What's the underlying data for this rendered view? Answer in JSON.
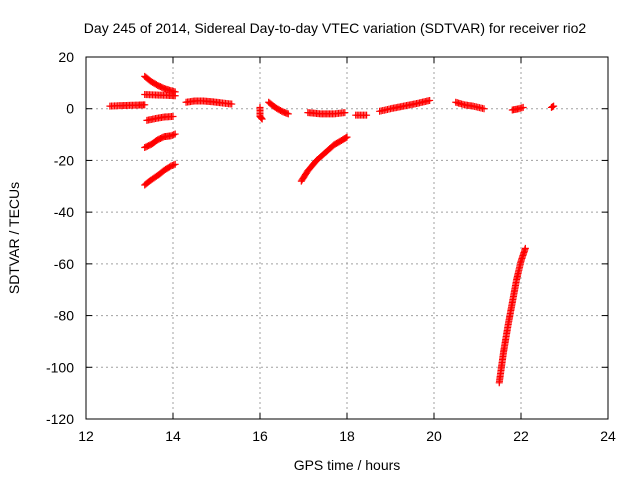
{
  "chart_data": {
    "type": "scatter",
    "title": "Day 245 of 2014, Sidereal Day-to-day VTEC variation (SDTVAR) for receiver rio2",
    "xlabel": "GPS time / hours",
    "ylabel": "SDTVAR / TECUs",
    "xlim": [
      12,
      24
    ],
    "ylim": [
      -120,
      20
    ],
    "xticks": [
      12,
      14,
      16,
      18,
      20,
      22,
      24
    ],
    "yticks": [
      20,
      0,
      -20,
      -40,
      -60,
      -80,
      -100,
      -120
    ],
    "grid": true,
    "marker": "plus",
    "marker_color": "#ff0000",
    "series": [
      {
        "points": [
          [
            12.55,
            1.0
          ],
          [
            12.8,
            1.2
          ],
          [
            13.0,
            1.3
          ],
          [
            13.2,
            1.4
          ],
          [
            13.35,
            1.5
          ]
        ]
      },
      {
        "points": [
          [
            13.35,
            12.5
          ],
          [
            13.5,
            10.5
          ],
          [
            13.65,
            9.0
          ],
          [
            13.8,
            7.8
          ],
          [
            13.95,
            7.0
          ],
          [
            14.05,
            6.5
          ]
        ]
      },
      {
        "points": [
          [
            13.35,
            5.5
          ],
          [
            13.6,
            5.3
          ],
          [
            13.85,
            5.2
          ],
          [
            14.05,
            5.0
          ]
        ]
      },
      {
        "points": [
          [
            13.4,
            -4.5
          ],
          [
            13.6,
            -3.8
          ],
          [
            13.8,
            -3.2
          ],
          [
            14.0,
            -3.0
          ]
        ]
      },
      {
        "points": [
          [
            13.35,
            -15.0
          ],
          [
            13.5,
            -13.8
          ],
          [
            13.65,
            -12.0
          ],
          [
            13.8,
            -10.8
          ],
          [
            13.95,
            -10.5
          ],
          [
            14.05,
            -9.8
          ]
        ]
      },
      {
        "points": [
          [
            13.35,
            -29.5
          ],
          [
            13.5,
            -27.5
          ],
          [
            13.65,
            -25.8
          ],
          [
            13.8,
            -23.8
          ],
          [
            13.95,
            -22.2
          ],
          [
            14.05,
            -21.5
          ]
        ]
      },
      {
        "points": [
          [
            14.3,
            2.5
          ],
          [
            14.5,
            3.0
          ],
          [
            14.7,
            3.0
          ],
          [
            14.9,
            2.7
          ],
          [
            15.1,
            2.3
          ],
          [
            15.35,
            1.8
          ]
        ]
      },
      {
        "points": [
          [
            16.0,
            0.5
          ],
          [
            16.0,
            -3.0
          ],
          [
            16.05,
            -4.0
          ]
        ]
      },
      {
        "points": [
          [
            16.2,
            2.5
          ],
          [
            16.35,
            0.5
          ],
          [
            16.5,
            -1.0
          ],
          [
            16.65,
            -2.0
          ]
        ]
      },
      {
        "points": [
          [
            16.95,
            -28.0
          ],
          [
            17.1,
            -24.0
          ],
          [
            17.3,
            -20.0
          ],
          [
            17.5,
            -17.0
          ],
          [
            17.7,
            -14.0
          ],
          [
            17.9,
            -12.0
          ],
          [
            18.0,
            -11.0
          ]
        ]
      },
      {
        "points": [
          [
            17.1,
            -1.5
          ],
          [
            17.4,
            -2.0
          ],
          [
            17.7,
            -2.0
          ],
          [
            17.95,
            -1.5
          ]
        ]
      },
      {
        "points": [
          [
            18.2,
            -2.5
          ],
          [
            18.45,
            -2.5
          ]
        ]
      },
      {
        "points": [
          [
            18.75,
            -1.0
          ],
          [
            19.0,
            0.0
          ],
          [
            19.3,
            1.0
          ],
          [
            19.6,
            2.0
          ],
          [
            19.9,
            3.2
          ]
        ]
      },
      {
        "points": [
          [
            20.5,
            2.5
          ],
          [
            20.7,
            1.5
          ],
          [
            20.9,
            1.0
          ],
          [
            21.15,
            0.0
          ]
        ]
      },
      {
        "points": [
          [
            21.8,
            -0.5
          ],
          [
            21.95,
            0.0
          ],
          [
            22.05,
            0.5
          ]
        ]
      },
      {
        "points": [
          [
            22.7,
            0.5
          ],
          [
            22.75,
            1.0
          ]
        ]
      },
      {
        "points": [
          [
            21.5,
            -106.0
          ],
          [
            21.6,
            -94.0
          ],
          [
            21.7,
            -84.0
          ],
          [
            21.8,
            -75.0
          ],
          [
            21.9,
            -66.0
          ],
          [
            22.0,
            -59.0
          ],
          [
            22.1,
            -54.0
          ]
        ]
      }
    ]
  }
}
